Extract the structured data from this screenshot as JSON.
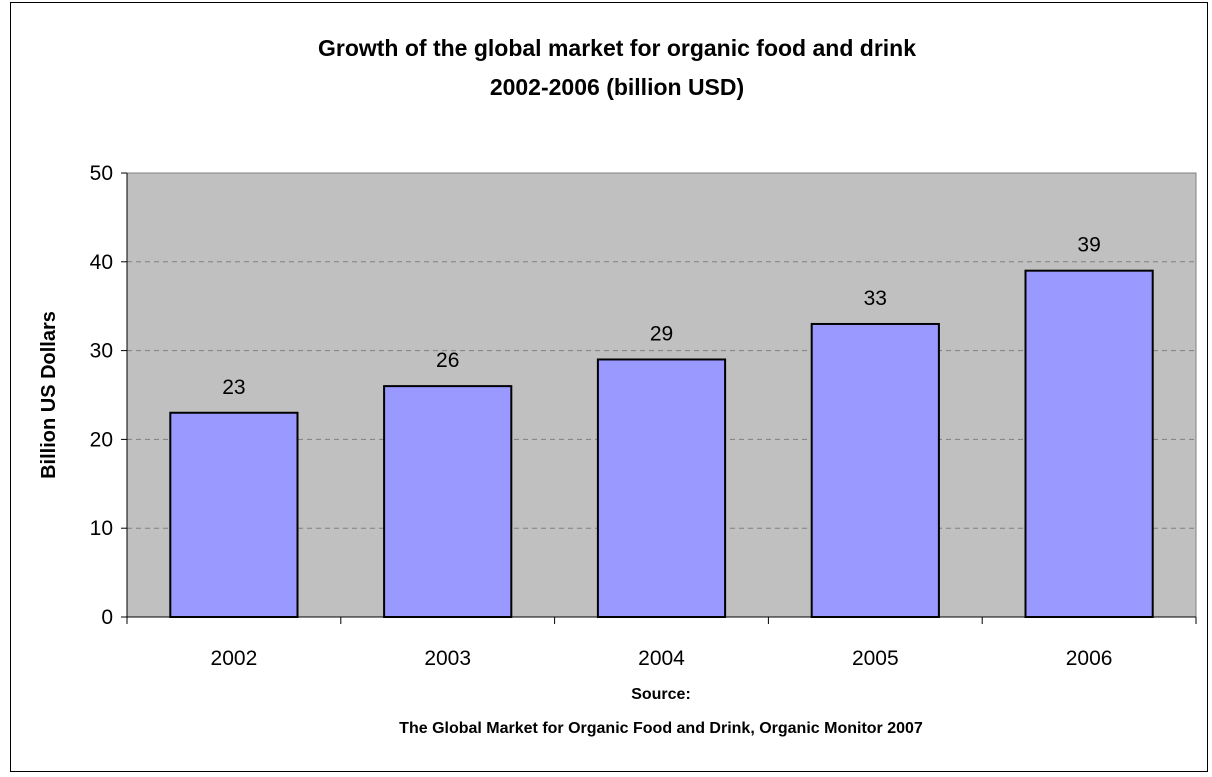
{
  "chart_data": {
    "type": "bar",
    "title": [
      "Growth of the global market for organic food and drink",
      "2002-2006 (billion USD)"
    ],
    "xlabel": "",
    "ylabel": "Billion US Dollars",
    "categories": [
      "2002",
      "2003",
      "2004",
      "2005",
      "2006"
    ],
    "values": [
      23,
      26,
      29,
      33,
      39
    ],
    "data_labels": [
      "23",
      "26",
      "29",
      "33",
      "39"
    ],
    "ylim": [
      0,
      50
    ],
    "yticks": [
      0,
      10,
      20,
      30,
      40,
      50
    ],
    "ytick_labels": [
      "0",
      "10",
      "20",
      "30",
      "40",
      "50"
    ],
    "grid": true,
    "legend": "none",
    "source": [
      "Source:",
      "The Global Market for Organic Food and Drink, Organic Monitor 2007"
    ],
    "colors": {
      "plot_background": "#c0c0c0",
      "bar_fill": "#9999ff",
      "bar_stroke": "#000000",
      "gridline": "#808080"
    }
  }
}
